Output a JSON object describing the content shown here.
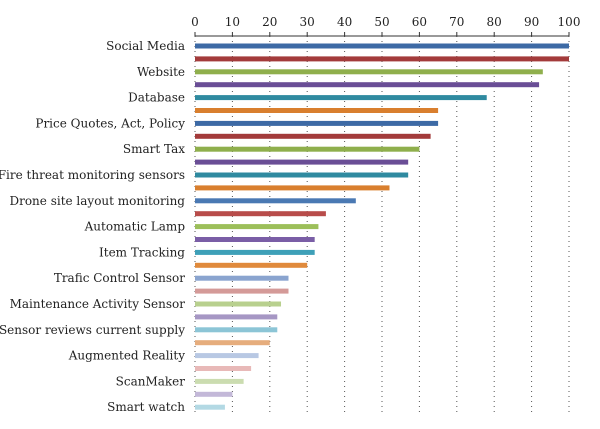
{
  "chart_data": {
    "type": "bar",
    "orientation": "horizontal",
    "xlim": [
      0,
      100
    ],
    "xticks": [
      0,
      10,
      20,
      30,
      40,
      50,
      60,
      70,
      80,
      90,
      100
    ],
    "grid": "vertical dotted",
    "x_axis_position": "top",
    "title": "",
    "xlabel": "",
    "ylabel": "",
    "category_labels": [
      "Social Media",
      "Website",
      "Database",
      "Price Quotes, Act, Policy",
      "Smart Tax",
      "Fire threat monitoring sensors",
      "Drone site layout monitoring",
      "Automatic Lamp",
      "Item Tracking",
      "Trafic Control Sensor",
      "Maintenance Activity Sensor",
      "Sensor reviews current supply",
      "Augmented Reality",
      "ScanMaker",
      "Smart watch"
    ],
    "values": [
      100,
      100,
      93,
      92,
      78,
      65,
      65,
      63,
      60,
      57,
      57,
      52,
      43,
      35,
      33,
      32,
      32,
      30,
      25,
      25,
      23,
      22,
      22,
      20,
      17,
      15,
      13,
      10,
      8
    ],
    "colors": [
      "#3d6aa5",
      "#a33b3b",
      "#8faf4c",
      "#6a4e96",
      "#2f8aa0",
      "#d97f2e",
      "#3d6aa5",
      "#a33b3b",
      "#8faf4c",
      "#6a4e96",
      "#2f8aa0",
      "#d97f2e",
      "#4a79b3",
      "#b84c4a",
      "#9cbf5a",
      "#7a5ea6",
      "#3ea0b8",
      "#e08a3c",
      "#8aa4cf",
      "#d49a98",
      "#b8d08e",
      "#a697c4",
      "#8cc5d6",
      "#e6ad7d",
      "#b8c8e3",
      "#e8b9b8",
      "#cbdcb0",
      "#c3b8d8",
      "#b3d9e4"
    ]
  }
}
